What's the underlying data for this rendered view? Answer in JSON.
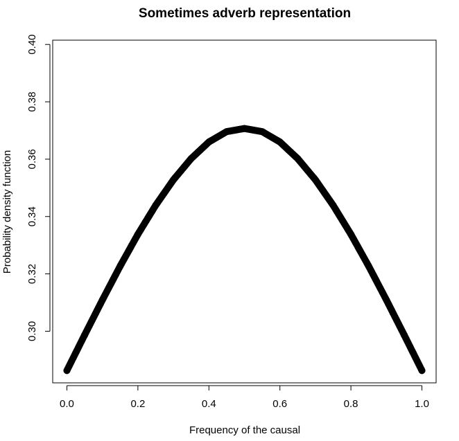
{
  "chart_data": {
    "type": "scatter",
    "title": "Sometimes adverb representation",
    "xlabel": "Frequency of the causal",
    "ylabel": "Probability density function",
    "xlim": [
      -0.04,
      1.04
    ],
    "ylim": [
      0.282,
      0.4015
    ],
    "xticks": [
      0.0,
      0.2,
      0.4,
      0.6,
      0.8,
      1.0
    ],
    "xtick_labels": [
      "0.0",
      "0.2",
      "0.4",
      "0.6",
      "0.8",
      "1.0"
    ],
    "yticks": [
      0.3,
      0.32,
      0.34,
      0.36,
      0.38,
      0.4
    ],
    "ytick_labels": [
      "0.30",
      "0.32",
      "0.34",
      "0.36",
      "0.38",
      "0.40"
    ],
    "grid": false,
    "marker": "filled-circle",
    "color": "#000000",
    "series": [
      {
        "x": [
          0.0,
          0.05,
          0.1,
          0.15,
          0.2,
          0.25,
          0.3,
          0.35,
          0.4,
          0.45,
          0.5,
          0.55,
          0.6,
          0.65,
          0.7,
          0.75,
          0.8,
          0.85,
          0.9,
          0.95,
          1.0
        ],
        "values": [
          0.2863,
          0.2987,
          0.3109,
          0.3227,
          0.3338,
          0.3439,
          0.3528,
          0.3602,
          0.366,
          0.3696,
          0.3707,
          0.3696,
          0.366,
          0.3602,
          0.3528,
          0.3439,
          0.3338,
          0.3227,
          0.3109,
          0.2987,
          0.2863
        ]
      }
    ]
  }
}
